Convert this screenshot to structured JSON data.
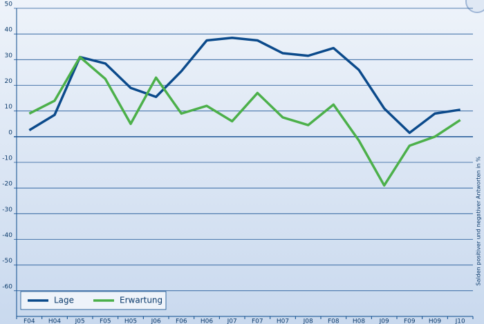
{
  "chart_data": {
    "type": "line",
    "y_label": "Salden positiver und negativer Antworten in %",
    "categories": [
      "F04",
      "H04",
      "J05",
      "F05",
      "H05",
      "J06",
      "F06",
      "H06",
      "J07",
      "F07",
      "H07",
      "J08",
      "F08",
      "H08",
      "J09",
      "F09",
      "H09",
      "J10"
    ],
    "series": [
      {
        "name": "Lage",
        "color": "#0b4a8b",
        "values": [
          2.5,
          8.5,
          31,
          28.5,
          19,
          15.5,
          25.5,
          37.5,
          38.5,
          37.5,
          32.5,
          31.5,
          34.5,
          26,
          11,
          1.5,
          9,
          10.5
        ]
      },
      {
        "name": "Erwartung",
        "color": "#4cb04a",
        "values": [
          9,
          14,
          31,
          22.5,
          5,
          23,
          9,
          12,
          6,
          17,
          7.5,
          4.5,
          12.5,
          -1.5,
          -19,
          -3.5,
          0,
          6.5
        ]
      }
    ],
    "ylim": [
      -70,
      50
    ],
    "yticks": [
      -60,
      -50,
      -40,
      -30,
      -20,
      -10,
      0,
      10,
      20,
      30,
      40,
      50
    ],
    "grid": true,
    "legend": "lower left"
  }
}
